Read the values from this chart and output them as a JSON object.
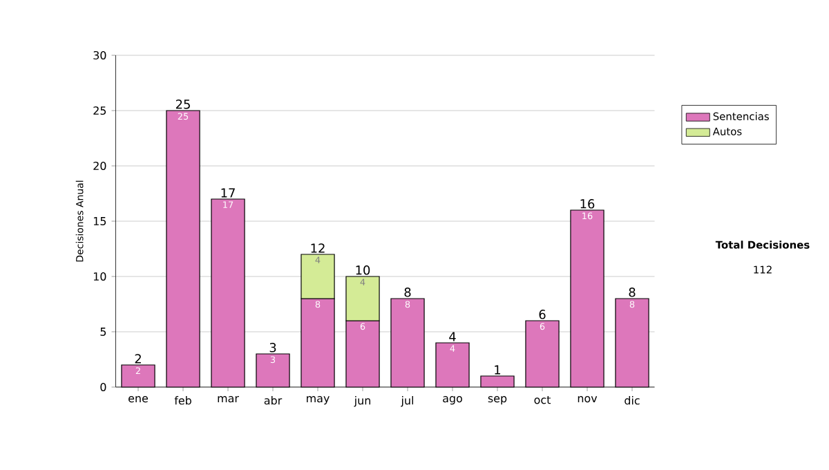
{
  "chart_data": {
    "type": "bar",
    "stacked": true,
    "ylabel": "Decisiones Anual",
    "categories": [
      "ene",
      "feb",
      "mar",
      "abr",
      "may",
      "jun",
      "jul",
      "ago",
      "sep",
      "oct",
      "nov",
      "dic"
    ],
    "series": [
      {
        "name": "Sentencias",
        "color": "#dd77bb",
        "values": [
          2,
          25,
          17,
          3,
          8,
          6,
          8,
          4,
          1,
          6,
          16,
          8
        ],
        "value_labels": [
          "2",
          "25",
          "17",
          "3",
          "8",
          "6",
          "8",
          "4",
          null,
          "6",
          "16",
          "8"
        ]
      },
      {
        "name": "Autos",
        "color": "#d4eb96",
        "values": [
          null,
          null,
          null,
          null,
          4,
          4,
          null,
          null,
          null,
          null,
          null,
          null
        ],
        "value_labels": [
          null,
          null,
          null,
          null,
          "4",
          "4",
          null,
          null,
          null,
          null,
          null,
          null
        ]
      }
    ],
    "totals": [
      "2",
      "25",
      "17",
      "3",
      "12",
      "10",
      "8",
      "4",
      "1",
      "6",
      "16",
      "8"
    ],
    "ylim": [
      0,
      30
    ],
    "yticks": [
      0,
      5,
      10,
      15,
      20,
      25,
      30
    ],
    "grid": "y",
    "legend": "right",
    "annotations": [
      "Total Decisiones",
      "112"
    ]
  }
}
